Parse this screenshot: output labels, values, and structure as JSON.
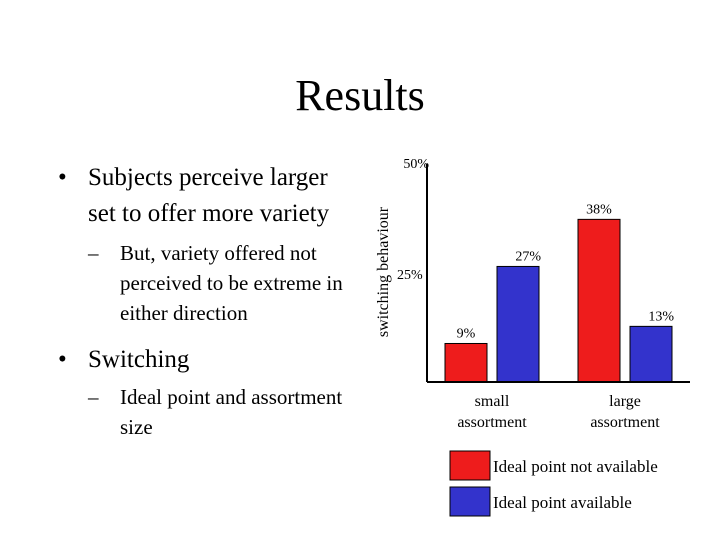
{
  "slide": {
    "title": "Results",
    "bullets": [
      {
        "text": "Subjects perceive larger set to offer more variety",
        "sub": [
          "But, variety offered not perceived to be extreme in either direction"
        ]
      },
      {
        "text": "Switching",
        "sub": [
          "Ideal point and assortment size"
        ]
      }
    ],
    "bullet_mark": "•",
    "sub_mark": "–"
  },
  "chart_data": {
    "type": "bar",
    "ylabel": "switching behaviour",
    "ylim": [
      0,
      50
    ],
    "yticks": [
      {
        "value": 50,
        "label": "50%"
      },
      {
        "value": 25,
        "label": "25%"
      }
    ],
    "categories": [
      "small assortment",
      "large assortment"
    ],
    "category_lines": [
      [
        "small",
        "assortment"
      ],
      [
        "large",
        "assortment"
      ]
    ],
    "series": [
      {
        "name": "Ideal point not available",
        "color": "#ee1c1c",
        "values": [
          9,
          38
        ],
        "labels": [
          "9%",
          "38%"
        ]
      },
      {
        "name": "Ideal point available",
        "color": "#3333cc",
        "values": [
          27,
          13
        ],
        "labels": [
          "27%",
          "13%"
        ]
      }
    ],
    "legend": "bottom"
  }
}
